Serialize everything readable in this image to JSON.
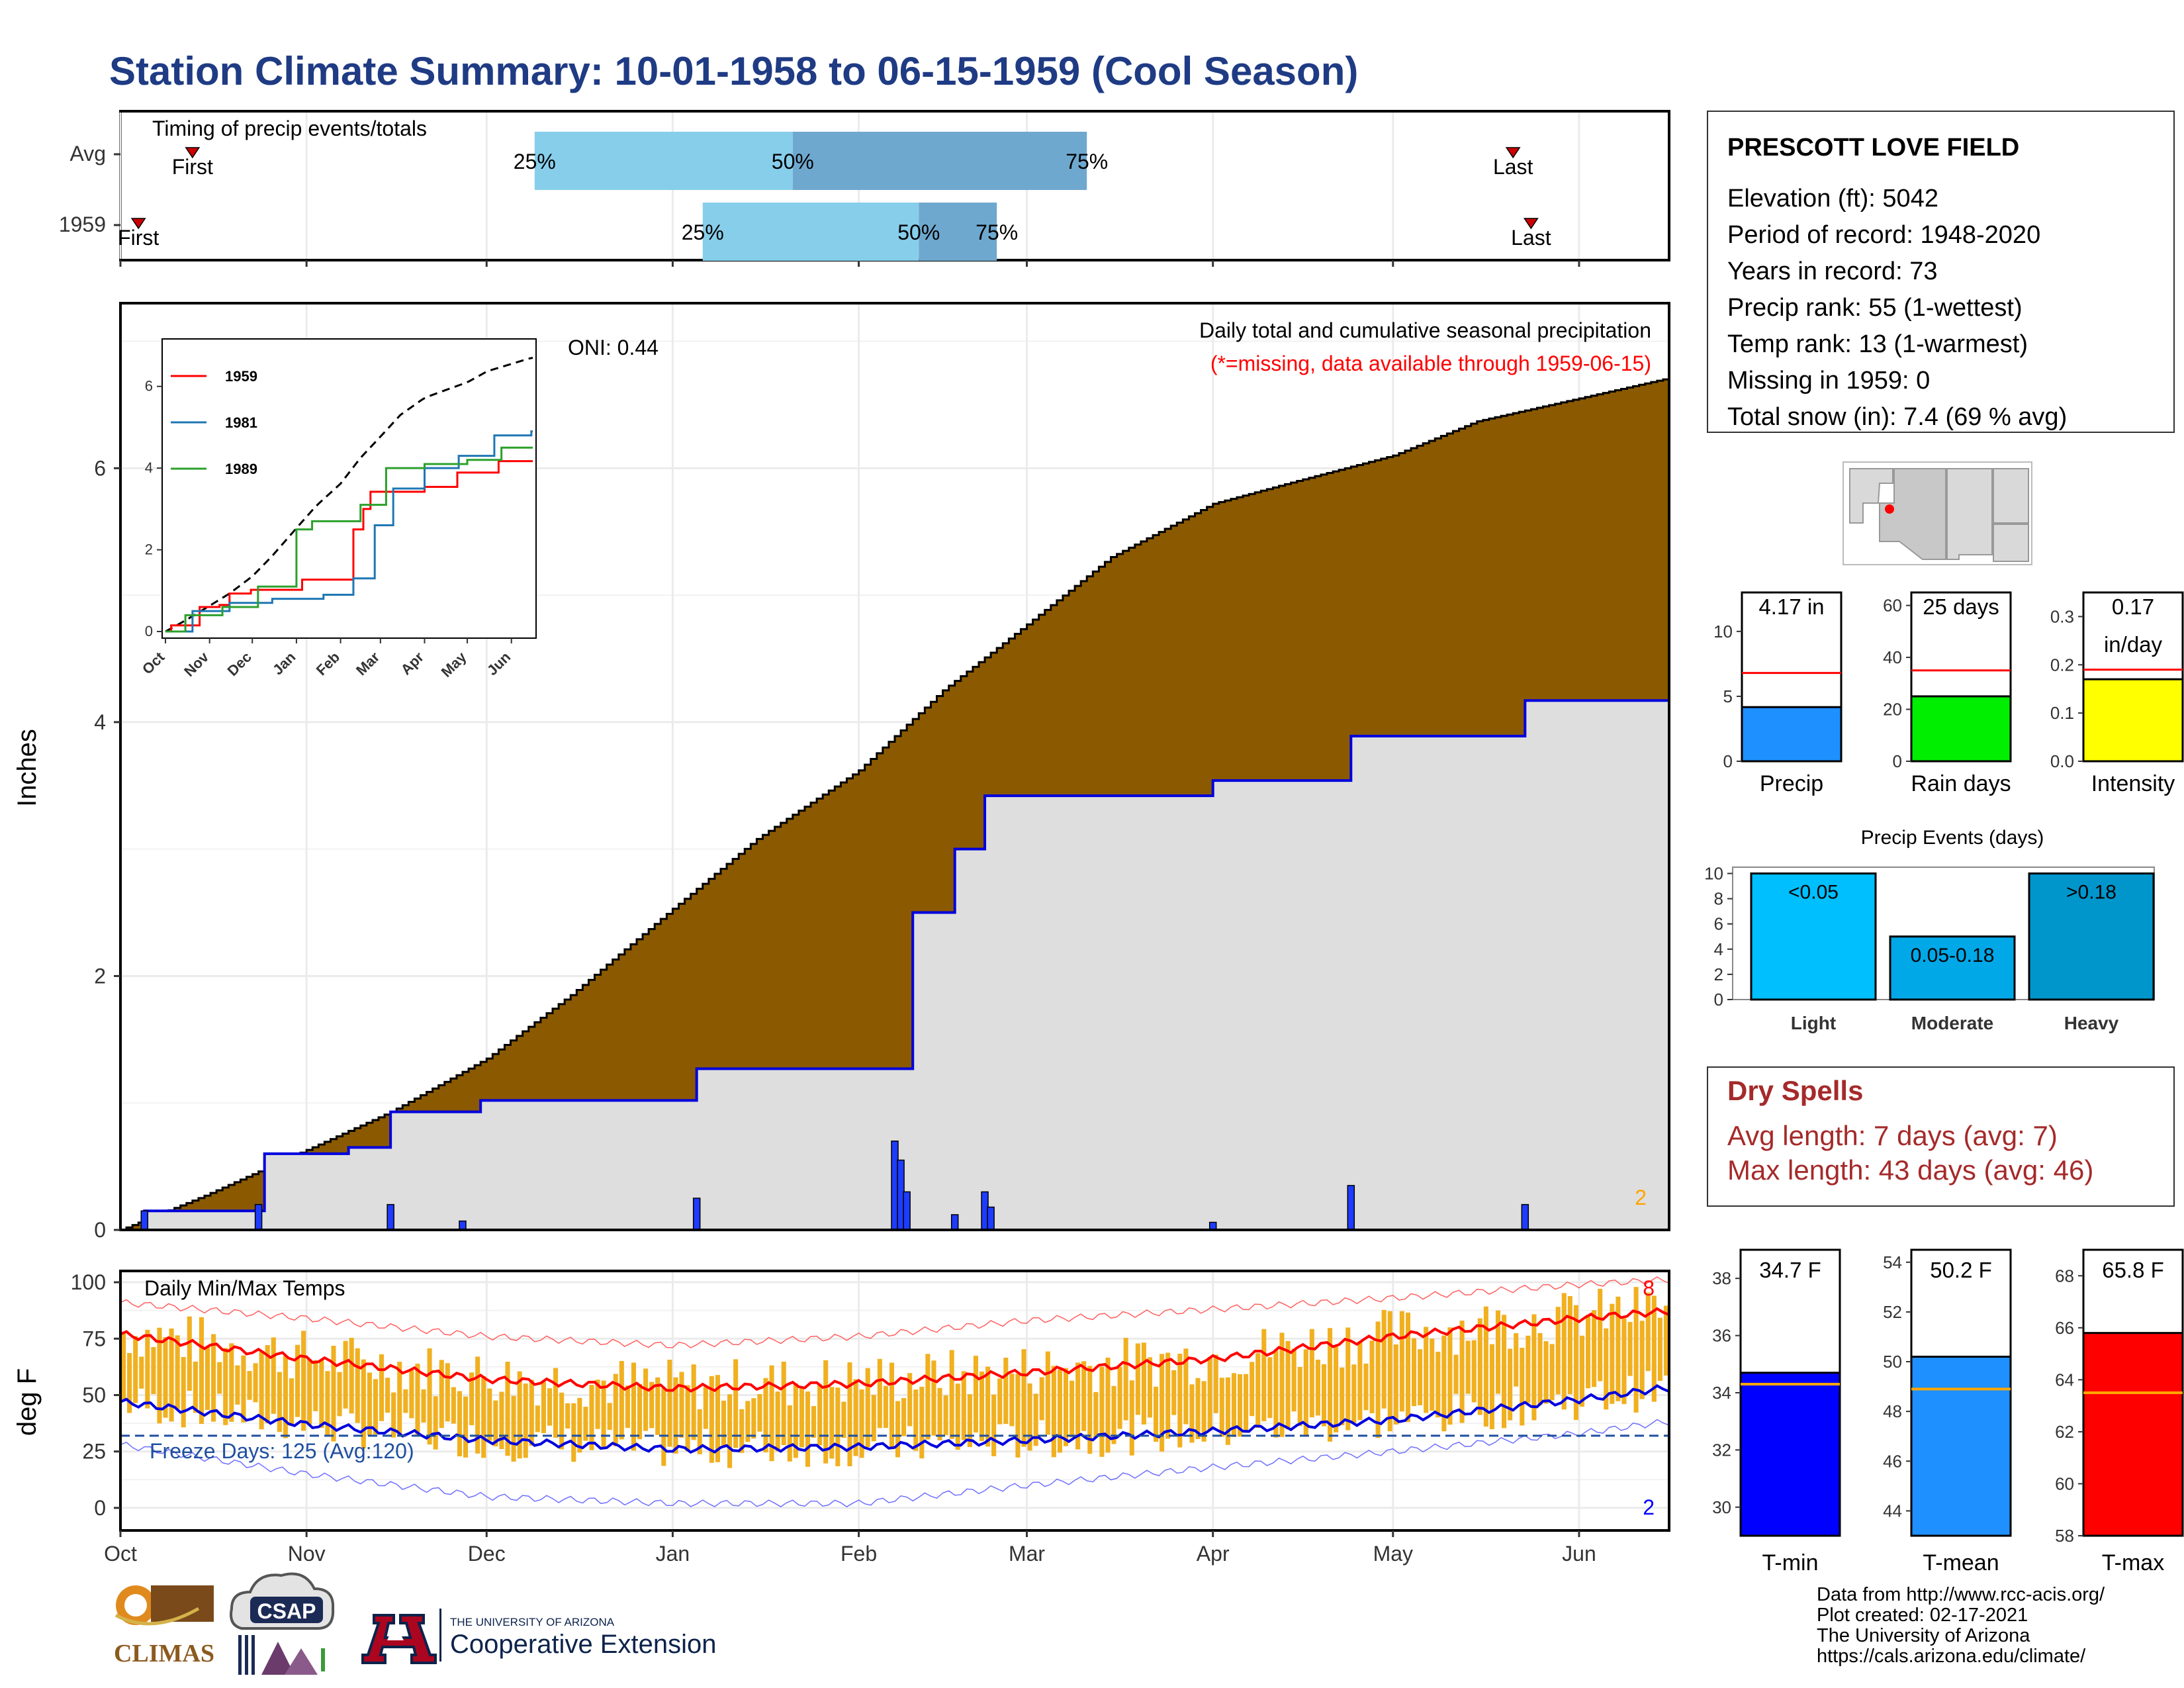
{
  "title": "Station Climate Summary: 10-01-1958 to 06-15-1959 (Cool Season)",
  "timing": {
    "title": "Timing of precip events/totals",
    "rows": [
      {
        "label": "Avg",
        "first": "First",
        "last": "Last",
        "p25": "25%",
        "p50": "50%",
        "p75": "75%",
        "first_x": "1958-10-13",
        "last_x": "1959-05-21",
        "q25_x": "1958-12-09",
        "q50_x": "1959-01-21",
        "q75_x": "1959-03-11"
      },
      {
        "label": "1959",
        "first": "First",
        "last": "Last",
        "p25": "25%",
        "p50": "50%",
        "p75": "75%",
        "first_x": "1958-10-04",
        "last_x": "1959-05-24",
        "q25_x": "1959-01-06",
        "q50_x": "1959-02-11",
        "q75_x": "1959-02-24"
      }
    ]
  },
  "station": {
    "name": "PRESCOTT LOVE FIELD",
    "lines": [
      "Elevation (ft): 5042",
      "Period of record: 1948-2020",
      "Years in record: 73",
      "Precip rank: 55 (1-wettest)",
      "Temp rank: 13 (1-warmest)",
      "Missing in 1959: 0",
      "Total snow (in): 7.4 (69 % avg)"
    ]
  },
  "precip_panel": {
    "ylabel": "Inches",
    "yticks": [
      "0",
      "2",
      "4",
      "6"
    ],
    "months": [
      "Oct",
      "Nov",
      "Dec",
      "Jan",
      "Feb",
      "Mar",
      "Apr",
      "May",
      "Jun"
    ],
    "label_main": "Daily total and cumulative seasonal precipitation",
    "label_missing": "(*=missing, data available through 1959-06-15)",
    "oni": "ONI: 0.44",
    "corner_count": "2"
  },
  "temp_panel": {
    "ylabel": "deg F",
    "title": "Daily Min/Max Temps",
    "yticks": [
      "0",
      "25",
      "50",
      "75",
      "100"
    ],
    "freeze": "Freeze Days: 125 (Avg:120)",
    "count_top": "8",
    "count_bottom": "2"
  },
  "summary_bars": {
    "precip": {
      "label": "Precip",
      "value_text": "4.17 in",
      "value": 4.17,
      "avg": 6.8,
      "yticks": [
        "0",
        "5",
        "10"
      ],
      "ymax": 13,
      "color": "#1e90ff"
    },
    "rain_days": {
      "label": "Rain days",
      "value_text": "25 days",
      "value": 25,
      "avg": 35,
      "yticks": [
        "0",
        "20",
        "40",
        "60"
      ],
      "ymax": 65,
      "color": "#00ee00"
    },
    "intensity": {
      "label": "Intensity",
      "value_text": "0.17",
      "value_text2": "in/day",
      "value": 0.17,
      "avg": 0.19,
      "yticks": [
        "0.0",
        "0.1",
        "0.2",
        "0.3"
      ],
      "ymax": 0.35,
      "color": "#ffff00"
    }
  },
  "events": {
    "title": "Precip Events (days)",
    "yticks": [
      "0",
      "2",
      "4",
      "6",
      "8",
      "10"
    ],
    "bars": [
      {
        "cat": "Light",
        "label": "<0.05",
        "value": 10,
        "color": "#00bfff"
      },
      {
        "cat": "Moderate",
        "label": "0.05-0.18",
        "value": 5,
        "color": "#00a8e8"
      },
      {
        "cat": "Heavy",
        "label": ">0.18",
        "value": 10,
        "color": "#0096cc"
      }
    ]
  },
  "dry_spells": {
    "title": "Dry Spells",
    "avg_line": "Avg length: 7 days (avg: 7)",
    "max_line": "Max length: 43 days (avg: 46)"
  },
  "temp_bars": {
    "tmin": {
      "label": "T-min",
      "value_text": "34.7 F",
      "value": 34.7,
      "avg": 34.3,
      "ymin": 29,
      "ymax": 39,
      "yticks": [
        "30",
        "32",
        "34",
        "36",
        "38"
      ],
      "color": "#0000ff"
    },
    "tmean": {
      "label": "T-mean",
      "value_text": "50.2 F",
      "value": 50.2,
      "avg": 48.9,
      "ymin": 43,
      "ymax": 54.5,
      "yticks": [
        "44",
        "46",
        "48",
        "50",
        "52",
        "54"
      ],
      "color": "#1e90ff"
    },
    "tmax": {
      "label": "T-max",
      "value_text": "65.8 F",
      "value": 65.8,
      "avg": 63.5,
      "ymin": 58,
      "ymax": 69,
      "yticks": [
        "58",
        "60",
        "62",
        "64",
        "66",
        "68"
      ],
      "color": "#ff0000"
    }
  },
  "footer": {
    "lines": [
      "Data from http://www.rcc-acis.org/",
      "Plot created: 02-17-2021",
      "The University of Arizona",
      "https://cals.arizona.edu/climate/"
    ],
    "logo_climas": "CLIMAS",
    "logo_csap": "CSAP",
    "logo_ua_small": "THE UNIVERSITY OF ARIZONA",
    "logo_ua_big": "Cooperative Extension"
  },
  "inset": {
    "yticks": [
      "0",
      "2",
      "4",
      "6"
    ],
    "months": [
      "Oct",
      "Nov",
      "Dec",
      "Jan",
      "Feb",
      "Mar",
      "Apr",
      "May",
      "Jun"
    ],
    "legend": [
      {
        "name": "1959",
        "color": "#ff0000"
      },
      {
        "name": "1981",
        "color": "#1f77b4"
      },
      {
        "name": "1989",
        "color": "#2ca02c"
      }
    ]
  },
  "chart_data": {
    "type": "area",
    "title": "Daily total and cumulative seasonal precipitation",
    "ylabel": "Inches",
    "ylim": [
      0,
      7.3
    ],
    "x_range": [
      "1958-10-01",
      "1959-06-15"
    ],
    "series": [
      {
        "name": "cumulative avg",
        "x": [
          "1958-10-01",
          "1958-10-15",
          "1958-11-01",
          "1958-11-15",
          "1958-12-01",
          "1958-12-15",
          "1959-01-01",
          "1959-01-15",
          "1959-02-01",
          "1959-02-15",
          "1959-03-01",
          "1959-03-15",
          "1959-04-01",
          "1959-04-15",
          "1959-05-01",
          "1959-05-15",
          "1959-06-01",
          "1959-06-15"
        ],
        "values": [
          0,
          0.27,
          0.63,
          0.93,
          1.35,
          1.85,
          2.53,
          3.08,
          3.62,
          4.25,
          4.77,
          5.3,
          5.72,
          5.9,
          6.1,
          6.37,
          6.55,
          6.7
        ]
      },
      {
        "name": "cumulative 1959",
        "x": [
          "1958-10-01",
          "1958-10-05",
          "1958-10-24",
          "1958-10-25",
          "1958-11-08",
          "1958-11-15",
          "1958-11-30",
          "1959-01-05",
          "1959-02-08",
          "1959-02-10",
          "1959-02-17",
          "1959-02-22",
          "1959-04-01",
          "1959-04-24",
          "1959-05-23",
          "1959-06-15"
        ],
        "values": [
          0,
          0.15,
          0.15,
          0.6,
          0.65,
          0.93,
          1.02,
          1.27,
          1.27,
          2.5,
          3.0,
          3.42,
          3.54,
          3.89,
          4.17,
          4.17
        ]
      },
      {
        "name": "daily 1959",
        "x": [
          "1958-10-05",
          "1958-10-24",
          "1958-11-15",
          "1958-11-27",
          "1959-01-05",
          "1959-02-07",
          "1959-02-08",
          "1959-02-09",
          "1959-02-17",
          "1959-02-22",
          "1959-02-23",
          "1959-04-01",
          "1959-04-24",
          "1959-05-23"
        ],
        "values": [
          0.15,
          0.2,
          0.2,
          0.07,
          0.25,
          0.7,
          0.55,
          0.3,
          0.12,
          0.3,
          0.18,
          0.06,
          0.35,
          0.2
        ]
      }
    ],
    "temps": {
      "ylim": [
        -10,
        105
      ],
      "x": [
        "1958-10-01",
        "1958-11-01",
        "1958-12-01",
        "1959-01-01",
        "1959-02-01",
        "1959-03-01",
        "1959-04-01",
        "1959-05-01",
        "1959-06-01",
        "1959-06-15"
      ],
      "avg_max": [
        77,
        66,
        57,
        53,
        55,
        60,
        66,
        76,
        84,
        87
      ],
      "avg_min": [
        47,
        37,
        30,
        26,
        27,
        30,
        34,
        39,
        48,
        53
      ],
      "record_max": [
        91,
        84,
        76,
        72,
        76,
        83,
        88,
        93,
        99,
        101
      ],
      "record_min": [
        28,
        15,
        5,
        2,
        2,
        10,
        18,
        25,
        33,
        38
      ],
      "freeze_line": 32
    }
  }
}
